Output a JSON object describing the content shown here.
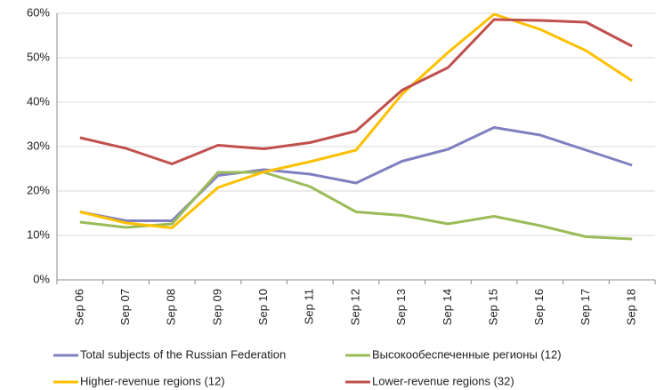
{
  "chart_data": {
    "type": "line",
    "categories": [
      "Sep 06",
      "Sep 07",
      "Sep 08",
      "Sep 09",
      "Sep 10",
      "Sep 11",
      "Sep 12",
      "Sep 13",
      "Sep 14",
      "Sep 15",
      "Sep 16",
      "Sep 17",
      "Sep 18"
    ],
    "series": [
      {
        "name": "Total subjects of the Russian Federation",
        "color": "#8080c0",
        "values": [
          15.3,
          13.3,
          13.3,
          23.5,
          24.8,
          23.8,
          21.8,
          26.7,
          29.4,
          34.3,
          32.6,
          29.2,
          25.8
        ]
      },
      {
        "name": "Высокообеспеченные  регионы (12)",
        "color": "#9bbb59",
        "values": [
          13.0,
          11.8,
          12.6,
          24.2,
          24.2,
          21.0,
          15.3,
          14.5,
          12.6,
          14.3,
          12.2,
          9.7,
          9.2
        ]
      },
      {
        "name": "Higher-revenue regions (12)",
        "color": "#ffc000",
        "values": [
          15.3,
          12.8,
          11.7,
          20.8,
          24.3,
          26.6,
          29.2,
          41.8,
          51.2,
          59.8,
          56.4,
          51.6,
          44.8
        ]
      },
      {
        "name": "Lower-revenue regions (32)",
        "color": "#c0504d",
        "values": [
          32.0,
          29.6,
          26.1,
          30.3,
          29.5,
          30.9,
          33.5,
          42.7,
          47.8,
          58.6,
          58.4,
          58.0,
          52.6
        ]
      }
    ],
    "ylim": [
      0,
      60
    ],
    "yticks": [
      {
        "value": 0,
        "label": "0%"
      },
      {
        "value": 10,
        "label": "10%"
      },
      {
        "value": 20,
        "label": "20%"
      },
      {
        "value": 30,
        "label": "30%"
      },
      {
        "value": 40,
        "label": "40%"
      },
      {
        "value": 50,
        "label": "50%"
      },
      {
        "value": 60,
        "label": "60%"
      }
    ],
    "grid": true
  }
}
